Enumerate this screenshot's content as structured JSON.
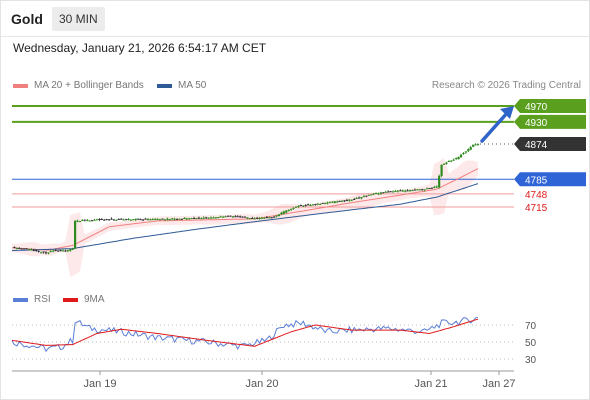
{
  "header": {
    "instrument": "Gold",
    "timeframe": "30 MIN",
    "datetime": "Wednesday, January 21, 2026 6:54:17 AM CET"
  },
  "price_legend": [
    {
      "label": "MA 20 + Bollinger Bands",
      "color": "#f08080"
    },
    {
      "label": "MA 50",
      "color": "#2e5a96"
    }
  ],
  "credit": "Research © 2026 Trading Central",
  "rsi_legend": [
    {
      "label": "RSI",
      "color": "#5b7fd6"
    },
    {
      "label": "9MA",
      "color": "#e0191b"
    }
  ],
  "colors": {
    "resistance": "#5aa01e",
    "pivot": "#2f64d6",
    "support": "#e0191b",
    "current": "#333333",
    "arrow": "#2f64c8",
    "candle_up": "#2d8a1e",
    "candle_down": "#333333"
  },
  "chart_data": {
    "type": "candlestick",
    "x_tick_labels": [
      "Jan 19",
      "Jan 20",
      "Jan 21",
      "Jan 27"
    ],
    "price_levels": [
      {
        "label": "4970",
        "value": 4970,
        "kind": "resistance"
      },
      {
        "label": "4930",
        "value": 4930,
        "kind": "resistance"
      },
      {
        "label": "4874",
        "value": 4874,
        "kind": "current"
      },
      {
        "label": "4785",
        "value": 4785,
        "kind": "pivot"
      },
      {
        "label": "4748",
        "value": 4748,
        "kind": "support"
      },
      {
        "label": "4715",
        "value": 4715,
        "kind": "support"
      }
    ],
    "price_anchors": [
      {
        "t": 0,
        "p": 4612
      },
      {
        "t": 6,
        "p": 4610
      },
      {
        "t": 10,
        "p": 4603
      },
      {
        "t": 14,
        "p": 4598
      },
      {
        "t": 17,
        "p": 4606
      },
      {
        "t": 22,
        "p": 4604
      },
      {
        "t": 25,
        "p": 4610
      },
      {
        "t": 26,
        "p": 4680
      },
      {
        "t": 32,
        "p": 4682
      },
      {
        "t": 42,
        "p": 4684
      },
      {
        "t": 60,
        "p": 4684
      },
      {
        "t": 80,
        "p": 4688
      },
      {
        "t": 90,
        "p": 4692
      },
      {
        "t": 100,
        "p": 4686
      },
      {
        "t": 108,
        "p": 4690
      },
      {
        "t": 112,
        "p": 4703
      },
      {
        "t": 118,
        "p": 4718
      },
      {
        "t": 128,
        "p": 4724
      },
      {
        "t": 140,
        "p": 4734
      },
      {
        "t": 150,
        "p": 4750
      },
      {
        "t": 160,
        "p": 4756
      },
      {
        "t": 170,
        "p": 4760
      },
      {
        "t": 175,
        "p": 4766
      },
      {
        "t": 177,
        "p": 4822
      },
      {
        "t": 183,
        "p": 4838
      },
      {
        "t": 187,
        "p": 4856
      },
      {
        "t": 190,
        "p": 4872
      },
      {
        "t": 192,
        "p": 4874
      }
    ],
    "ma20_anchors": [
      {
        "t": 0,
        "p": 4612
      },
      {
        "t": 15,
        "p": 4606
      },
      {
        "t": 25,
        "p": 4618
      },
      {
        "t": 40,
        "p": 4665
      },
      {
        "t": 60,
        "p": 4680
      },
      {
        "t": 100,
        "p": 4685
      },
      {
        "t": 120,
        "p": 4705
      },
      {
        "t": 140,
        "p": 4726
      },
      {
        "t": 160,
        "p": 4745
      },
      {
        "t": 175,
        "p": 4760
      },
      {
        "t": 185,
        "p": 4790
      },
      {
        "t": 192,
        "p": 4812
      }
    ],
    "ma50_anchors": [
      {
        "t": 0,
        "p": 4605
      },
      {
        "t": 25,
        "p": 4610
      },
      {
        "t": 50,
        "p": 4636
      },
      {
        "t": 75,
        "p": 4658
      },
      {
        "t": 100,
        "p": 4678
      },
      {
        "t": 120,
        "p": 4693
      },
      {
        "t": 140,
        "p": 4708
      },
      {
        "t": 160,
        "p": 4722
      },
      {
        "t": 175,
        "p": 4740
      },
      {
        "t": 192,
        "p": 4774
      }
    ],
    "forecast": {
      "from": 4874,
      "to": 4970
    },
    "rsi": {
      "levels": [
        70,
        50,
        30
      ],
      "rsi_anchors": [
        {
          "t": 0,
          "v": 50
        },
        {
          "t": 8,
          "v": 46
        },
        {
          "t": 14,
          "v": 42
        },
        {
          "t": 20,
          "v": 44
        },
        {
          "t": 25,
          "v": 52
        },
        {
          "t": 26,
          "v": 75
        },
        {
          "t": 32,
          "v": 66
        },
        {
          "t": 45,
          "v": 62
        },
        {
          "t": 60,
          "v": 55
        },
        {
          "t": 80,
          "v": 50
        },
        {
          "t": 95,
          "v": 45
        },
        {
          "t": 105,
          "v": 52
        },
        {
          "t": 112,
          "v": 70
        },
        {
          "t": 120,
          "v": 72
        },
        {
          "t": 130,
          "v": 62
        },
        {
          "t": 140,
          "v": 64
        },
        {
          "t": 155,
          "v": 66
        },
        {
          "t": 170,
          "v": 62
        },
        {
          "t": 177,
          "v": 72
        },
        {
          "t": 185,
          "v": 74
        },
        {
          "t": 192,
          "v": 78
        }
      ],
      "ma9_anchors": [
        {
          "t": 0,
          "v": 52
        },
        {
          "t": 14,
          "v": 46
        },
        {
          "t": 25,
          "v": 47
        },
        {
          "t": 35,
          "v": 60
        },
        {
          "t": 45,
          "v": 65
        },
        {
          "t": 60,
          "v": 60
        },
        {
          "t": 80,
          "v": 52
        },
        {
          "t": 100,
          "v": 45
        },
        {
          "t": 115,
          "v": 62
        },
        {
          "t": 125,
          "v": 70
        },
        {
          "t": 140,
          "v": 64
        },
        {
          "t": 160,
          "v": 64
        },
        {
          "t": 172,
          "v": 60
        },
        {
          "t": 182,
          "v": 68
        },
        {
          "t": 192,
          "v": 77
        }
      ]
    }
  }
}
